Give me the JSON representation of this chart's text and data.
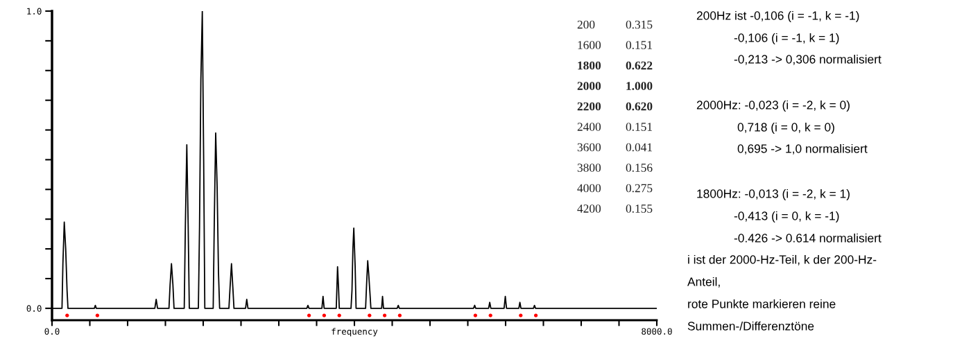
{
  "chart_data": {
    "type": "line",
    "xlabel": "frequency",
    "xlim": [
      0,
      8000
    ],
    "ylim": [
      -0.04,
      1.0
    ],
    "xticks": [
      {
        "value": 0,
        "label": "0.0"
      },
      {
        "value": 500,
        "label": null
      },
      {
        "value": 1000,
        "label": null
      },
      {
        "value": 1500,
        "label": null
      },
      {
        "value": 2000,
        "label": null
      },
      {
        "value": 2500,
        "label": null
      },
      {
        "value": 3000,
        "label": null
      },
      {
        "value": 3500,
        "label": null
      },
      {
        "value": 4000,
        "label": null
      },
      {
        "value": 4500,
        "label": null
      },
      {
        "value": 5000,
        "label": null
      },
      {
        "value": 5500,
        "label": null
      },
      {
        "value": 6000,
        "label": null
      },
      {
        "value": 6500,
        "label": null
      },
      {
        "value": 7000,
        "label": null
      },
      {
        "value": 7500,
        "label": null
      },
      {
        "value": 8000,
        "label": "8000.0"
      }
    ],
    "yticks": [
      {
        "value": 0,
        "label": "0.0"
      },
      {
        "value": 0.1,
        "label": null
      },
      {
        "value": 0.2,
        "label": null
      },
      {
        "value": 0.3,
        "label": null
      },
      {
        "value": 0.4,
        "label": null
      },
      {
        "value": 0.5,
        "label": null
      },
      {
        "value": 0.6,
        "label": null
      },
      {
        "value": 0.7,
        "label": null
      },
      {
        "value": 0.8,
        "label": null
      },
      {
        "value": 0.9,
        "label": null
      },
      {
        "value": 1.0,
        "label": "1.0"
      }
    ],
    "grid": false,
    "legend": false,
    "series": [
      {
        "color": "#000000",
        "marker": "none",
        "x": [
          0,
          132,
          144,
          162,
          181,
          199,
          211,
          560,
          573,
          586,
          1360,
          1378,
          1396,
          1547,
          1562,
          1580,
          1599,
          1614,
          1749,
          1764,
          1783,
          1801,
          1816,
          1936,
          1951,
          1969,
          1988,
          2006,
          2021,
          2132,
          2147,
          2165,
          2184,
          2202,
          2217,
          2340,
          2355,
          2374,
          2392,
          2407,
          2560,
          2576,
          2592,
          3370,
          3385,
          3400,
          3570,
          3585,
          3600,
          3760,
          3777,
          3790,
          3800,
          3955,
          3968,
          3980,
          3992,
          4010,
          4022,
          4148,
          4161,
          4176,
          4188,
          4206,
          4218,
          4360,
          4372,
          4385,
          4565,
          4580,
          4595,
          5575,
          5591,
          5605,
          5775,
          5790,
          5805,
          5980,
          5996,
          6012,
          6175,
          6189,
          6203,
          6368,
          6382,
          6396,
          8000
        ],
        "values": [
          0,
          0,
          0.15,
          0.29,
          0.2,
          0.06,
          0,
          0,
          0.01,
          0,
          0,
          0.03,
          0,
          0,
          0.08,
          0.15,
          0.08,
          0,
          0,
          0.28,
          0.55,
          0.28,
          0,
          0,
          0.27,
          0.77,
          1.0,
          0.5,
          0,
          0,
          0.3,
          0.59,
          0.41,
          0.12,
          0,
          0,
          0.07,
          0.15,
          0.07,
          0,
          0,
          0.03,
          0,
          0,
          0.01,
          0,
          0,
          0.04,
          0,
          0,
          0.14,
          0.07,
          0,
          0,
          0.06,
          0.2,
          0.27,
          0.14,
          0,
          0,
          0.08,
          0.16,
          0.12,
          0.05,
          0,
          0,
          0.04,
          0,
          0,
          0.01,
          0,
          0,
          0.01,
          0,
          0,
          0.02,
          0,
          0,
          0.04,
          0,
          0,
          0.02,
          0,
          0,
          0.01,
          0,
          0
        ]
      },
      {
        "type": "scatter",
        "color": "#ff0000",
        "marker": "circle",
        "x": [
          200,
          600,
          3400,
          3600,
          3800,
          4200,
          4400,
          4600,
          5600,
          5800,
          6200,
          6400
        ],
        "values": [
          -0.024,
          -0.024,
          -0.024,
          -0.024,
          -0.024,
          -0.024,
          -0.024,
          -0.024,
          -0.024,
          -0.024,
          -0.024,
          -0.024
        ]
      }
    ],
    "annotations": [
      "200",
      "0.315",
      "1600",
      "0.151",
      "1800",
      "0.622",
      "2000",
      "1.000",
      "2200",
      "0.620",
      "2400",
      "0.151",
      "3600",
      "0.041",
      "3800",
      "0.156",
      "4000",
      "0.275",
      "4200",
      "0.155",
      "200Hz ist -0,106 (i = -1, k = -1)",
      "-0,106 (i = -1, k = 1)",
      "-0,213 -> 0,306 normalisiert",
      "2000Hz: -0,023 (i = -2, k = 0)",
      "0,718 (i = 0, k = 0)",
      "0,695 -> 1,0 normalisiert",
      "1800Hz: -0,013 (i = -2, k = 1)",
      "-0,413 (i = 0, k = -1)",
      "-0.426 -> 0.614 normalisiert",
      "i ist der 2000-Hz-Teil, k der 200-Hz-",
      "Anteil,",
      "rote Punkte markieren reine",
      "Summen-/Differenztöne"
    ]
  }
}
